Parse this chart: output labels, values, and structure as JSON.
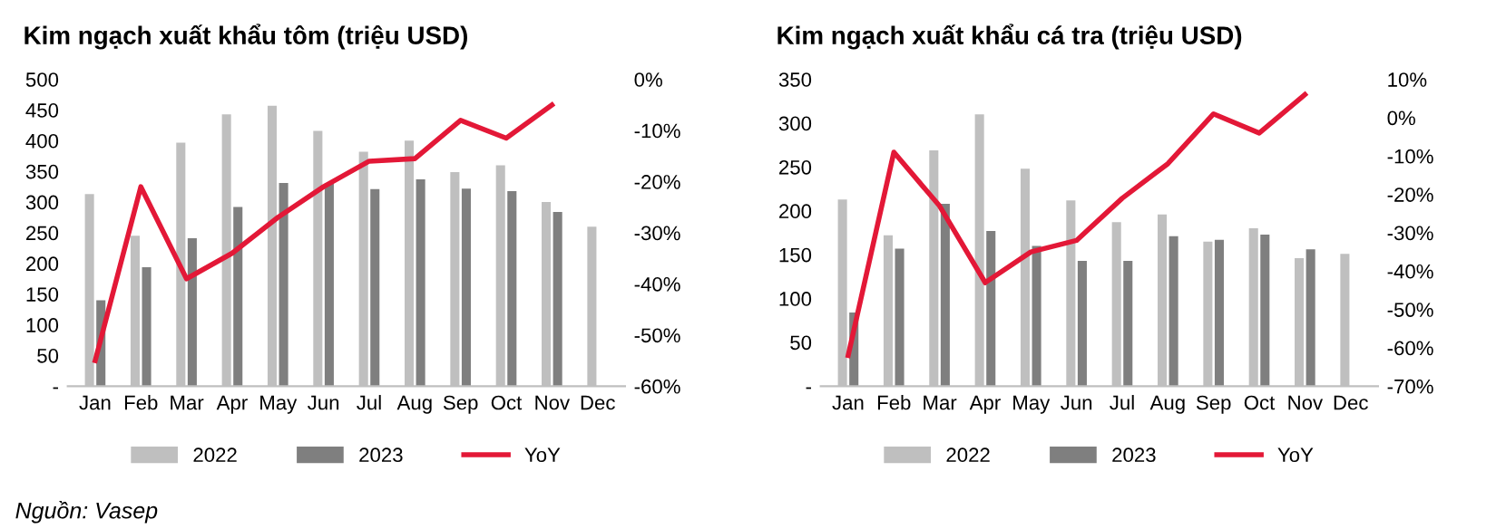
{
  "chart_data": [
    {
      "type": "bar",
      "title": "Kim ngạch xuất khẩu tôm (triệu USD)",
      "categories": [
        "Jan",
        "Feb",
        "Mar",
        "Apr",
        "May",
        "Jun",
        "Jul",
        "Aug",
        "Sep",
        "Oct",
        "Nov",
        "Dec"
      ],
      "series": [
        {
          "name": "2022",
          "color": "#bfbfbf",
          "values": [
            313,
            245,
            397,
            443,
            457,
            416,
            382,
            400,
            349,
            360,
            300,
            260
          ]
        },
        {
          "name": "2023",
          "color": "#7f7f7f",
          "values": [
            140,
            194,
            241,
            292,
            331,
            331,
            321,
            337,
            322,
            318,
            284,
            null
          ]
        },
        {
          "name": "YoY",
          "type": "line",
          "axis": "y2",
          "color": "#e31837",
          "values": [
            -55,
            -21,
            -39,
            -34,
            -27,
            -21,
            -16,
            -15.5,
            -8,
            -11.5,
            -5,
            null
          ]
        }
      ],
      "ylim": [
        0,
        500
      ],
      "yticks": [
        {
          "value": 0,
          "label": "-"
        },
        50,
        100,
        150,
        200,
        250,
        300,
        350,
        400,
        450,
        500
      ],
      "y2lim": [
        -60,
        0
      ],
      "y2ticks": [
        {
          "value": -60,
          "label": "-60%"
        },
        {
          "value": -50,
          "label": "-50%"
        },
        {
          "value": -40,
          "label": "-40%"
        },
        {
          "value": -30,
          "label": "-30%"
        },
        {
          "value": -20,
          "label": "-20%"
        },
        {
          "value": -10,
          "label": "-10%"
        },
        {
          "value": 0,
          "label": "0%"
        }
      ],
      "legend": "bottom",
      "grid": false,
      "annotations": [
        "Nguồn: Vasep"
      ]
    },
    {
      "type": "bar",
      "title": "Kim ngạch xuất khẩu cá tra (triệu USD)",
      "categories": [
        "Jan",
        "Feb",
        "Mar",
        "Apr",
        "May",
        "Jun",
        "Jul",
        "Aug",
        "Sep",
        "Oct",
        "Nov",
        "Dec"
      ],
      "series": [
        {
          "name": "2022",
          "color": "#bfbfbf",
          "values": [
            213,
            172,
            269,
            310,
            248,
            212,
            187,
            196,
            165,
            180,
            146,
            151
          ]
        },
        {
          "name": "2023",
          "color": "#7f7f7f",
          "values": [
            84,
            157,
            208,
            177,
            160,
            143,
            143,
            171,
            167,
            173,
            156,
            null
          ]
        },
        {
          "name": "YoY",
          "type": "line",
          "axis": "y2",
          "color": "#e31837",
          "values": [
            -62,
            -9,
            -23,
            -43,
            -35,
            -32,
            -21,
            -12,
            1,
            -4,
            6,
            null
          ]
        }
      ],
      "ylim": [
        0,
        350
      ],
      "yticks": [
        {
          "value": 0,
          "label": "-"
        },
        50,
        100,
        150,
        200,
        250,
        300,
        350
      ],
      "y2lim": [
        -70,
        10
      ],
      "y2ticks": [
        {
          "value": -70,
          "label": "-70%"
        },
        {
          "value": -60,
          "label": "-60%"
        },
        {
          "value": -50,
          "label": "-50%"
        },
        {
          "value": -40,
          "label": "-40%"
        },
        {
          "value": -30,
          "label": "-30%"
        },
        {
          "value": -20,
          "label": "-20%"
        },
        {
          "value": -10,
          "label": "-10%"
        },
        {
          "value": 0,
          "label": "0%"
        },
        {
          "value": 10,
          "label": "10%"
        }
      ],
      "legend": "bottom",
      "grid": false
    }
  ]
}
